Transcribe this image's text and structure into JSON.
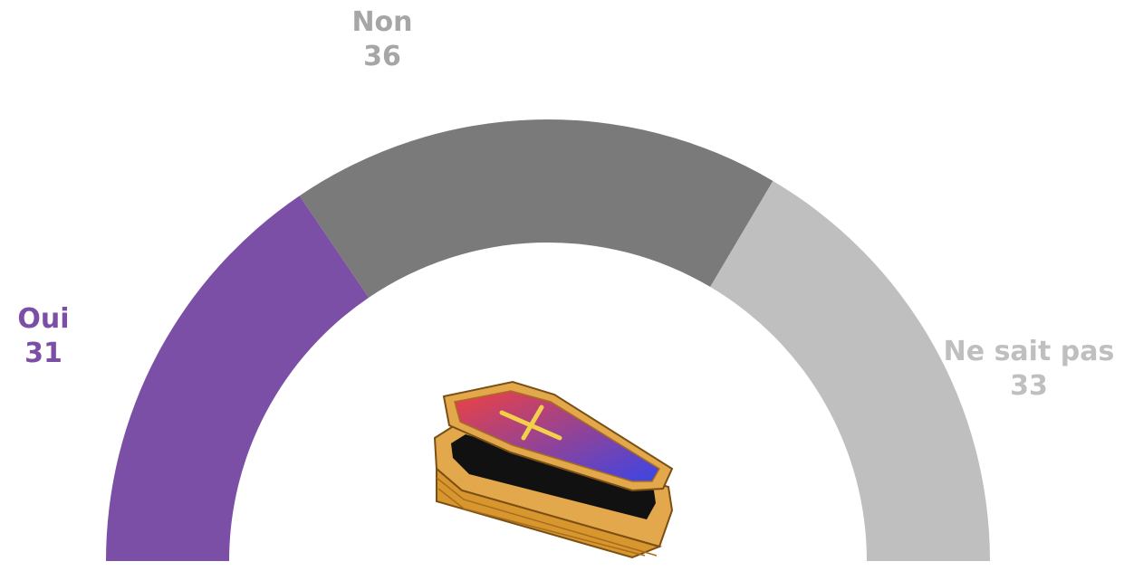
{
  "chart_data": {
    "type": "pie",
    "shape": "half-donut",
    "categories": [
      "Oui",
      "Non",
      "Ne sait pas"
    ],
    "values": [
      31,
      36,
      33
    ],
    "colors": [
      "#7b4fa6",
      "#7a7a7a",
      "#bfbfbf"
    ],
    "labels": [
      {
        "name": "Oui",
        "value": "31",
        "color": "#7b4fa6"
      },
      {
        "name": "Non",
        "value": "36",
        "color": "#a6a6a6"
      },
      {
        "name": "Ne sait pas",
        "value": "33",
        "color": "#bfbfbf"
      }
    ]
  },
  "illustration": {
    "icon": "coffin-icon",
    "colors": {
      "wood": "#e3a84c",
      "wood_dark": "#b87a22",
      "lid_top": "#ef4141",
      "lid_bottom": "#3b45e6",
      "cross": "#f3d04a",
      "inside": "#111111"
    }
  }
}
